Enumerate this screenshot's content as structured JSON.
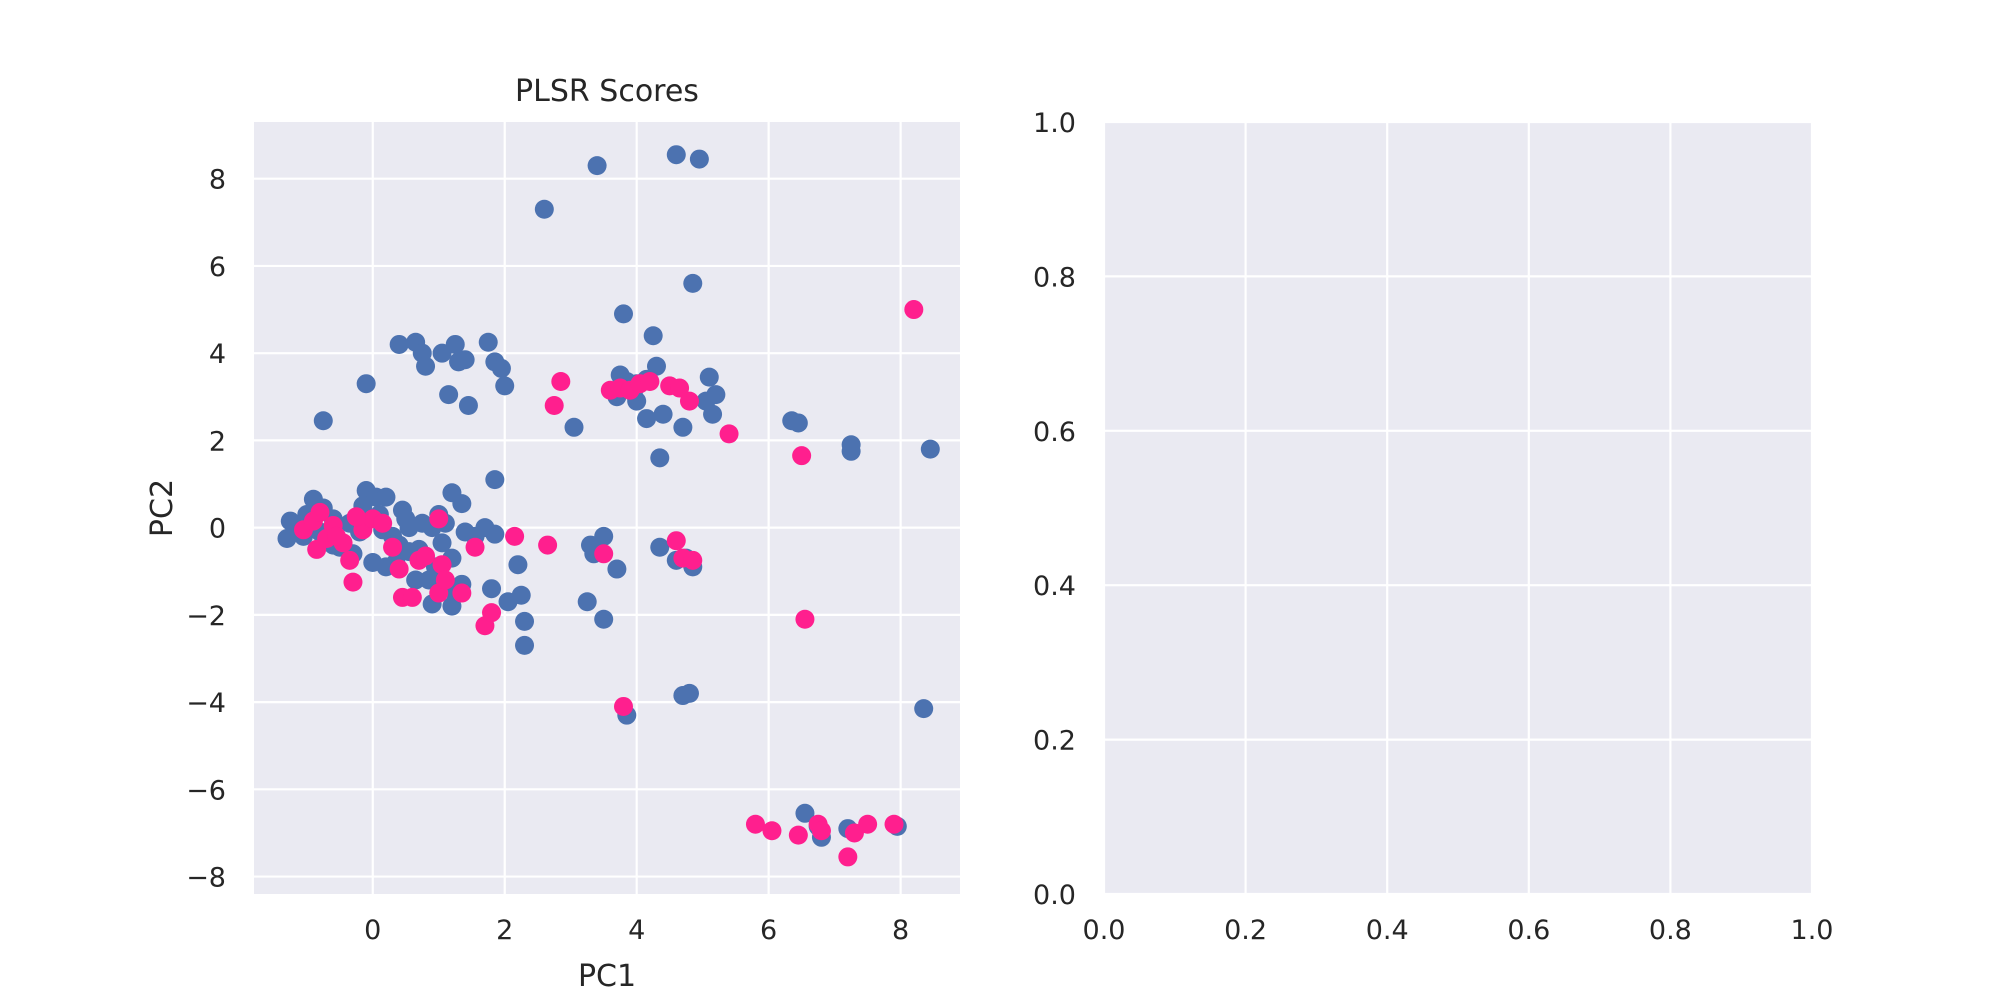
{
  "colors": {
    "panel_background": "#eaeaf2",
    "grid": "#ffffff",
    "series_blue": "#4c72b0",
    "series_pink": "#ff1f8e",
    "text": "#262626"
  },
  "chart_data": [
    {
      "type": "scatter",
      "title": "PLSR Scores",
      "xlabel": "PC1",
      "ylabel": "PC2",
      "xlim": [
        -1.8,
        8.9
      ],
      "ylim": [
        -8.4,
        9.3
      ],
      "xticks": [
        "0",
        "2",
        "4",
        "6",
        "8"
      ],
      "yticks": [
        "−8",
        "−6",
        "−4",
        "−2",
        "0",
        "2",
        "4",
        "6",
        "8"
      ],
      "grid": true,
      "legend": "none",
      "series": [
        {
          "color": "#4c72b0",
          "points": [
            [
              3.4,
              8.3
            ],
            [
              4.6,
              8.55
            ],
            [
              4.95,
              8.45
            ],
            [
              2.6,
              7.3
            ],
            [
              4.85,
              5.6
            ],
            [
              3.8,
              4.9
            ],
            [
              4.25,
              4.4
            ],
            [
              0.4,
              4.2
            ],
            [
              0.65,
              4.25
            ],
            [
              1.05,
              4.0
            ],
            [
              1.25,
              4.2
            ],
            [
              1.75,
              4.25
            ],
            [
              0.75,
              4.0
            ],
            [
              0.8,
              3.7
            ],
            [
              1.3,
              3.8
            ],
            [
              1.4,
              3.85
            ],
            [
              1.85,
              3.8
            ],
            [
              1.95,
              3.65
            ],
            [
              -0.1,
              3.3
            ],
            [
              1.15,
              3.05
            ],
            [
              1.45,
              2.8
            ],
            [
              2.0,
              3.25
            ],
            [
              3.05,
              2.3
            ],
            [
              3.75,
              3.5
            ],
            [
              3.7,
              3.0
            ],
            [
              3.85,
              3.35
            ],
            [
              4.0,
              3.3
            ],
            [
              4.15,
              3.4
            ],
            [
              4.3,
              3.7
            ],
            [
              4.0,
              2.9
            ],
            [
              3.95,
              3.1
            ],
            [
              4.4,
              2.6
            ],
            [
              4.15,
              2.5
            ],
            [
              4.7,
              2.3
            ],
            [
              4.35,
              1.6
            ],
            [
              5.1,
              3.45
            ],
            [
              5.05,
              2.9
            ],
            [
              5.2,
              3.05
            ],
            [
              5.15,
              2.6
            ],
            [
              6.35,
              2.45
            ],
            [
              6.45,
              2.4
            ],
            [
              7.25,
              1.75
            ],
            [
              7.25,
              1.9
            ],
            [
              8.45,
              1.8
            ],
            [
              -0.75,
              2.45
            ],
            [
              1.85,
              1.1
            ],
            [
              1.2,
              0.8
            ],
            [
              1.35,
              0.55
            ],
            [
              -1.3,
              -0.25
            ],
            [
              -1.1,
              0.0
            ],
            [
              -1.0,
              0.3
            ],
            [
              -0.9,
              0.65
            ],
            [
              -0.75,
              0.45
            ],
            [
              -0.6,
              0.2
            ],
            [
              -0.5,
              -0.45
            ],
            [
              -0.35,
              0.1
            ],
            [
              -0.2,
              -0.1
            ],
            [
              -0.1,
              0.85
            ],
            [
              0.05,
              0.7
            ],
            [
              0.2,
              0.7
            ],
            [
              0.1,
              0.3
            ],
            [
              0.3,
              -0.2
            ],
            [
              0.45,
              0.4
            ],
            [
              0.55,
              0.0
            ],
            [
              0.7,
              -0.5
            ],
            [
              0.85,
              -1.2
            ],
            [
              0.95,
              -0.9
            ],
            [
              1.05,
              -0.35
            ],
            [
              1.2,
              -0.7
            ],
            [
              1.25,
              -1.5
            ],
            [
              1.35,
              -1.3
            ],
            [
              1.55,
              -0.2
            ],
            [
              1.7,
              0.0
            ],
            [
              1.85,
              -0.15
            ],
            [
              0.2,
              -0.9
            ],
            [
              0.35,
              -0.8
            ],
            [
              0.55,
              -0.55
            ],
            [
              0.65,
              -1.2
            ],
            [
              0.9,
              -1.75
            ],
            [
              1.2,
              -1.8
            ],
            [
              1.8,
              -1.4
            ],
            [
              2.05,
              -1.7
            ],
            [
              2.25,
              -1.55
            ],
            [
              2.2,
              -0.85
            ],
            [
              2.3,
              -2.15
            ],
            [
              2.3,
              -2.7
            ],
            [
              3.25,
              -1.7
            ],
            [
              3.5,
              -2.1
            ],
            [
              3.3,
              -0.4
            ],
            [
              3.35,
              -0.6
            ],
            [
              3.5,
              -0.2
            ],
            [
              3.7,
              -0.95
            ],
            [
              4.35,
              -0.45
            ],
            [
              4.6,
              -0.75
            ],
            [
              4.75,
              -0.7
            ],
            [
              4.85,
              -0.9
            ],
            [
              4.7,
              -3.85
            ],
            [
              4.8,
              -3.8
            ],
            [
              3.85,
              -4.3
            ],
            [
              8.35,
              -4.15
            ],
            [
              6.55,
              -6.55
            ],
            [
              6.75,
              -6.85
            ],
            [
              6.8,
              -7.1
            ],
            [
              7.2,
              -6.9
            ],
            [
              7.95,
              -6.85
            ],
            [
              -0.8,
              -0.1
            ],
            [
              -0.6,
              -0.4
            ],
            [
              -0.3,
              -0.6
            ],
            [
              0.0,
              -0.8
            ],
            [
              0.4,
              -0.4
            ],
            [
              0.5,
              0.2
            ],
            [
              0.75,
              0.1
            ],
            [
              0.9,
              0.0
            ],
            [
              -1.25,
              0.15
            ],
            [
              -1.05,
              -0.2
            ],
            [
              -0.15,
              0.5
            ],
            [
              0.15,
              -0.05
            ],
            [
              1.0,
              0.3
            ],
            [
              1.1,
              0.1
            ],
            [
              1.4,
              -0.1
            ]
          ]
        },
        {
          "color": "#ff1f8e",
          "points": [
            [
              8.2,
              5.0
            ],
            [
              2.85,
              3.35
            ],
            [
              2.75,
              2.8
            ],
            [
              3.6,
              3.15
            ],
            [
              3.75,
              3.2
            ],
            [
              3.9,
              3.15
            ],
            [
              4.05,
              3.3
            ],
            [
              4.2,
              3.35
            ],
            [
              4.5,
              3.25
            ],
            [
              4.65,
              3.2
            ],
            [
              4.8,
              2.9
            ],
            [
              5.4,
              2.15
            ],
            [
              6.5,
              1.65
            ],
            [
              -1.05,
              -0.05
            ],
            [
              -0.9,
              0.15
            ],
            [
              -0.8,
              0.35
            ],
            [
              -0.7,
              -0.25
            ],
            [
              -0.6,
              0.05
            ],
            [
              -0.45,
              -0.35
            ],
            [
              -0.35,
              -0.75
            ],
            [
              -0.3,
              -1.25
            ],
            [
              -0.15,
              -0.05
            ],
            [
              0.0,
              0.2
            ],
            [
              0.15,
              0.1
            ],
            [
              0.3,
              -0.45
            ],
            [
              0.4,
              -0.95
            ],
            [
              0.45,
              -1.6
            ],
            [
              0.6,
              -1.6
            ],
            [
              0.7,
              -0.75
            ],
            [
              0.8,
              -0.65
            ],
            [
              1.0,
              -1.5
            ],
            [
              1.05,
              -0.85
            ],
            [
              1.1,
              -1.2
            ],
            [
              1.0,
              0.2
            ],
            [
              1.35,
              -1.5
            ],
            [
              1.55,
              -0.45
            ],
            [
              1.7,
              -2.25
            ],
            [
              1.8,
              -1.95
            ],
            [
              2.15,
              -0.2
            ],
            [
              2.65,
              -0.4
            ],
            [
              3.5,
              -0.6
            ],
            [
              4.6,
              -0.3
            ],
            [
              4.7,
              -0.7
            ],
            [
              4.85,
              -0.75
            ],
            [
              6.55,
              -2.1
            ],
            [
              3.8,
              -4.1
            ],
            [
              5.8,
              -6.8
            ],
            [
              6.05,
              -6.95
            ],
            [
              6.45,
              -7.05
            ],
            [
              6.75,
              -6.8
            ],
            [
              6.8,
              -6.95
            ],
            [
              7.2,
              -7.55
            ],
            [
              7.3,
              -7.0
            ],
            [
              7.5,
              -6.8
            ],
            [
              7.9,
              -6.8
            ],
            [
              -0.55,
              -0.2
            ],
            [
              -0.85,
              -0.5
            ],
            [
              -0.25,
              0.25
            ]
          ]
        }
      ]
    },
    {
      "type": "scatter",
      "title": "",
      "xlabel": "",
      "ylabel": "",
      "xlim": [
        0,
        1
      ],
      "ylim": [
        0,
        1
      ],
      "xticks": [
        "0.0",
        "0.2",
        "0.4",
        "0.6",
        "0.8",
        "1.0"
      ],
      "yticks": [
        "0.0",
        "0.2",
        "0.4",
        "0.6",
        "0.8",
        "1.0"
      ],
      "grid": true,
      "legend": "none",
      "series": []
    }
  ]
}
